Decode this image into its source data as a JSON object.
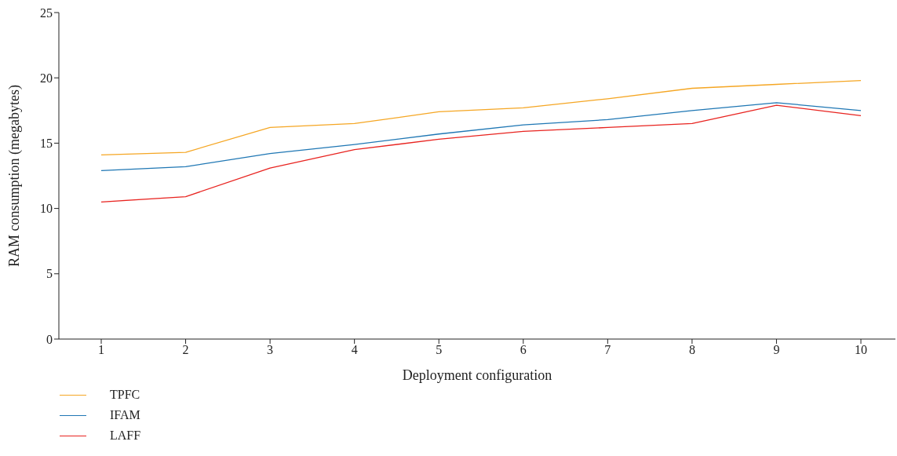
{
  "chart_data": {
    "type": "line",
    "xlabel": "Deployment configuration",
    "ylabel": "RAM consumption (megabytes)",
    "categories": [
      "1",
      "2",
      "3",
      "4",
      "5",
      "6",
      "7",
      "8",
      "9",
      "10"
    ],
    "ylim": [
      0,
      25
    ],
    "yticks": [
      0,
      5,
      10,
      15,
      20,
      25
    ],
    "grid": false,
    "legend": "bottom left",
    "marker": "none",
    "line_style": "solid",
    "series": [
      {
        "name": "TPFC",
        "color": "#f5a623",
        "values": [
          14.1,
          14.3,
          16.2,
          16.5,
          17.4,
          17.7,
          18.4,
          19.2,
          19.5,
          19.8
        ]
      },
      {
        "name": "IFAM",
        "color": "#1f77b4",
        "values": [
          12.9,
          13.2,
          14.2,
          14.9,
          15.7,
          16.4,
          16.8,
          17.5,
          18.1,
          17.5
        ]
      },
      {
        "name": "LAFF",
        "color": "#e8231f",
        "values": [
          10.5,
          10.9,
          13.1,
          14.5,
          15.3,
          15.9,
          16.2,
          16.5,
          17.9,
          17.1
        ]
      }
    ]
  }
}
